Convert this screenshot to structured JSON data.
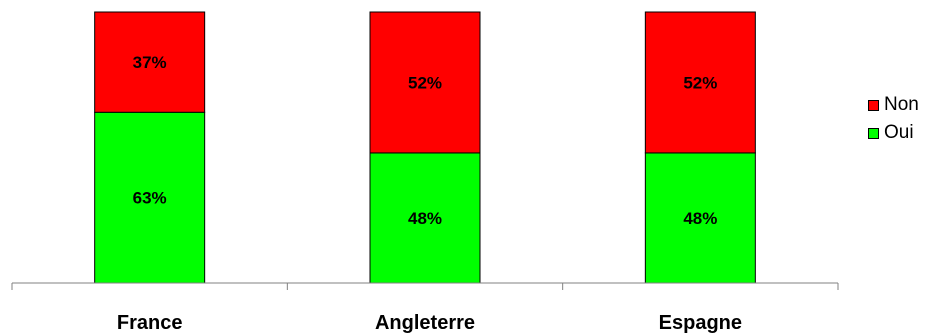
{
  "chart_data": {
    "type": "bar",
    "stacked": true,
    "categories": [
      "France",
      "Angleterre",
      "Espagne"
    ],
    "series": [
      {
        "name": "Oui",
        "values": [
          63,
          48,
          48
        ],
        "labels": [
          "63%",
          "48%",
          "48%"
        ],
        "color": "#00ff00"
      },
      {
        "name": "Non",
        "values": [
          37,
          52,
          52
        ],
        "labels": [
          "37%",
          "52%",
          "52%"
        ],
        "color": "#ff0000"
      }
    ],
    "value_unit": "%",
    "ylim": [
      0,
      100
    ],
    "grid": false,
    "legend_position": "right",
    "legend_order": [
      "Non",
      "Oui"
    ]
  }
}
